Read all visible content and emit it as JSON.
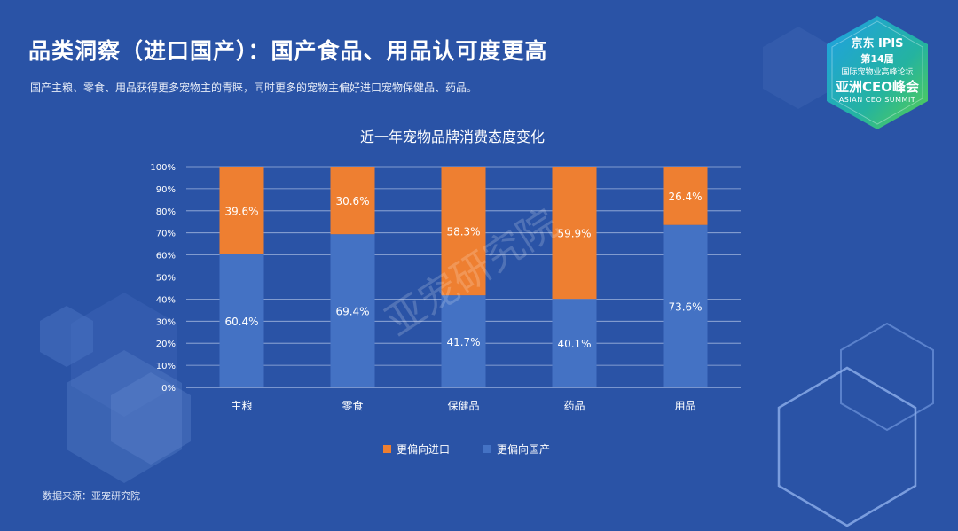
{
  "header": {
    "title": "品类洞察（进口国产）：国产食品、用品认可度更高",
    "subtitle": "国产主粮、零食、用品获得更多宠物主的青睐，同时更多的宠物主偏好进口宠物保健品、药品。"
  },
  "badge": {
    "line1": "京东 IPIS",
    "line2": "第14届",
    "line3": "国际宠物业高峰论坛",
    "line4": "亚洲CEO峰会",
    "line5": "ASIAN CEO SUMMIT"
  },
  "watermark": "亚宠研究院",
  "source": "数据来源：亚宠研究院",
  "colors": {
    "background": "#2a53a6",
    "imported": "#ee7f31",
    "domestic": "#4472c4",
    "accent_green": "#3fb95a"
  },
  "chart_data": {
    "type": "bar",
    "stacked": true,
    "title": "近一年宠物品牌消费态度变化",
    "categories": [
      "主粮",
      "零食",
      "保健品",
      "药品",
      "用品"
    ],
    "series": [
      {
        "name": "更偏向国产",
        "values": [
          60.4,
          69.4,
          41.7,
          40.1,
          73.6
        ],
        "labels": [
          "60.4%",
          "69.4%",
          "41.7%",
          "40.1%",
          "73.6%"
        ]
      },
      {
        "name": "更偏向进口",
        "values": [
          39.6,
          30.6,
          58.3,
          59.9,
          26.4
        ],
        "labels": [
          "39.6%",
          "30.6%",
          "58.3%",
          "59.9%",
          "26.4%"
        ]
      }
    ],
    "legend": [
      "更偏向进口",
      "更偏向国产"
    ],
    "yticks": [
      "0%",
      "10%",
      "20%",
      "30%",
      "40%",
      "50%",
      "60%",
      "70%",
      "80%",
      "90%",
      "100%"
    ],
    "ylim": [
      0,
      100
    ],
    "grid": true
  }
}
